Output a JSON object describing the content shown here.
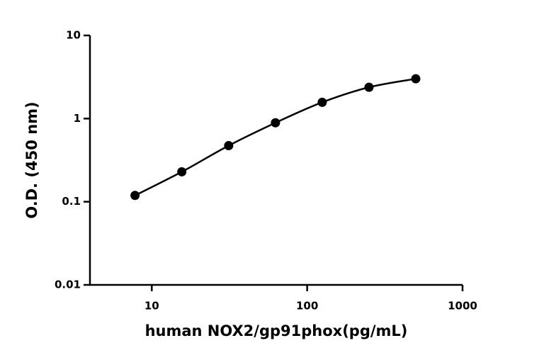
{
  "chart_data": {
    "type": "scatter-curve",
    "x_label": "human NOX2/gp91phox(pg/mL)",
    "y_label": "O.D. (450 nm)",
    "x": [
      7.8,
      15.6,
      31.25,
      62.5,
      125,
      250,
      500
    ],
    "values": [
      0.119,
      0.229,
      0.473,
      0.89,
      1.57,
      2.38,
      3.01
    ],
    "color": "#000000",
    "xlog": true,
    "ylog": true,
    "xlim": [
      4,
      1000
    ],
    "ylim": [
      0.01,
      10
    ],
    "xticks": [
      10,
      100,
      1000
    ],
    "yticks": [
      0.01,
      0.1,
      1,
      10
    ]
  }
}
